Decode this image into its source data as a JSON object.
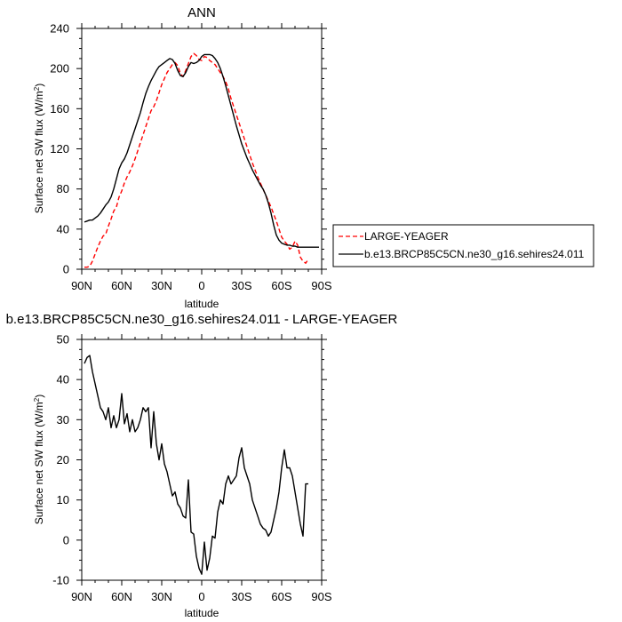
{
  "chart_data": [
    {
      "type": "line",
      "title": "ANN",
      "xlabel": "latitude",
      "ylabel": "Surface net SW flux (W/m",
      "ylabel_sup": "2",
      "ylabel_close": ")",
      "xlim": [
        90,
        -90
      ],
      "ylim": [
        0,
        240
      ],
      "xticks": [
        90,
        60,
        30,
        0,
        -30,
        -60,
        -90
      ],
      "xtick_labels": [
        "90N",
        "60N",
        "30N",
        "0",
        "30S",
        "60S",
        "90S"
      ],
      "yticks": [
        0,
        40,
        80,
        120,
        160,
        200,
        240
      ],
      "ytick_labels": [
        "0",
        "40",
        "80",
        "120",
        "160",
        "200",
        "240"
      ],
      "legend": [
        {
          "label": "LARGE-YEAGER",
          "color": "#ff0000",
          "dash": true
        },
        {
          "label": "b.e13.BRCP85C5CN.ne30_g16.sehires24.011",
          "color": "#000000",
          "dash": false
        }
      ],
      "series": [
        {
          "name": "LARGE-YEAGER",
          "color": "#ff0000",
          "dash": true,
          "x": [
            88,
            86,
            84,
            82,
            80,
            78,
            76,
            74,
            72,
            70,
            68,
            66,
            64,
            62,
            60,
            58,
            56,
            54,
            52,
            50,
            48,
            46,
            44,
            42,
            40,
            38,
            36,
            34,
            32,
            30,
            28,
            26,
            24,
            22,
            20,
            18,
            16,
            14,
            12,
            10,
            8,
            6,
            4,
            2,
            0,
            -2,
            -4,
            -6,
            -8,
            -10,
            -12,
            -14,
            -16,
            -18,
            -20,
            -22,
            -24,
            -26,
            -28,
            -30,
            -32,
            -34,
            -36,
            -38,
            -40,
            -42,
            -44,
            -46,
            -48,
            -50,
            -52,
            -54,
            -56,
            -58,
            -60,
            -62,
            -64,
            -66,
            -68,
            -70,
            -72,
            -74,
            -76,
            -78,
            -80
          ],
          "y": [
            2,
            2,
            3,
            8,
            15,
            22,
            28,
            33,
            35,
            43,
            50,
            58,
            62,
            72,
            78,
            86,
            92,
            97,
            103,
            110,
            118,
            126,
            134,
            142,
            150,
            158,
            162,
            168,
            176,
            184,
            190,
            196,
            200,
            204,
            206,
            203,
            195,
            192,
            198,
            205,
            212,
            215,
            213,
            209,
            208,
            212,
            211,
            208,
            206,
            204,
            200,
            196,
            192,
            187,
            180,
            170,
            162,
            154,
            146,
            138,
            130,
            122,
            114,
            106,
            99,
            92,
            86,
            80,
            74,
            68,
            62,
            55,
            48,
            40,
            32,
            28,
            25,
            20,
            22,
            28,
            24,
            12,
            8,
            6,
            10
          ]
        },
        {
          "name": "b.e13.BRCP85C5CN.ne30_g16.sehires24.011",
          "color": "#000000",
          "dash": false,
          "x": [
            88,
            86,
            84,
            82,
            80,
            78,
            76,
            74,
            72,
            70,
            68,
            66,
            64,
            62,
            60,
            58,
            56,
            54,
            52,
            50,
            48,
            46,
            44,
            42,
            40,
            38,
            36,
            34,
            32,
            30,
            28,
            26,
            24,
            22,
            20,
            18,
            16,
            14,
            12,
            10,
            8,
            6,
            4,
            2,
            0,
            -2,
            -4,
            -6,
            -8,
            -10,
            -12,
            -14,
            -16,
            -18,
            -20,
            -22,
            -24,
            -26,
            -28,
            -30,
            -32,
            -34,
            -36,
            -38,
            -40,
            -42,
            -44,
            -46,
            -48,
            -50,
            -52,
            -54,
            -56,
            -58,
            -60,
            -62,
            -64,
            -66,
            -68,
            -70,
            -72,
            -74,
            -76,
            -78,
            -80,
            -82,
            -84,
            -86,
            -88
          ],
          "y": [
            47,
            48,
            49,
            49,
            51,
            53,
            56,
            60,
            64,
            67,
            72,
            80,
            90,
            100,
            106,
            110,
            116,
            124,
            132,
            140,
            148,
            156,
            166,
            175,
            182,
            188,
            193,
            198,
            202,
            204,
            206,
            208,
            210,
            209,
            205,
            198,
            193,
            192,
            196,
            202,
            206,
            205,
            206,
            208,
            212,
            214,
            214,
            214,
            213,
            210,
            206,
            200,
            192,
            183,
            173,
            163,
            153,
            143,
            134,
            125,
            118,
            111,
            105,
            99,
            94,
            89,
            84,
            80,
            74,
            66,
            56,
            44,
            34,
            29,
            26,
            25,
            24,
            24,
            23,
            23,
            22,
            22,
            22,
            22,
            22,
            22,
            22,
            22,
            22
          ]
        }
      ]
    },
    {
      "type": "line",
      "title": "b.e13.BRCP85C5CN.ne30_g16.sehires24.011 - LARGE-YEAGER",
      "xlabel": "latitude",
      "ylabel": "Surface net SW flux (W/m",
      "ylabel_sup": "2",
      "ylabel_close": ")",
      "xlim": [
        90,
        -90
      ],
      "ylim": [
        -10,
        50
      ],
      "xticks": [
        90,
        60,
        30,
        0,
        -30,
        -60,
        -90
      ],
      "xtick_labels": [
        "90N",
        "60N",
        "30N",
        "0",
        "30S",
        "60S",
        "90S"
      ],
      "yticks": [
        -10,
        0,
        10,
        20,
        30,
        40,
        50
      ],
      "ytick_labels": [
        "-10",
        "0",
        "10",
        "20",
        "30",
        "40",
        "50"
      ],
      "series": [
        {
          "name": "b.e13.BRCP85C5CN.ne30_g16.sehires24.011 - LARGE-YEAGER",
          "color": "#000000",
          "dash": false,
          "x": [
            88,
            86,
            84,
            82,
            80,
            78,
            76,
            74,
            72,
            70,
            68,
            66,
            64,
            62,
            60,
            58,
            56,
            54,
            52,
            50,
            48,
            46,
            44,
            42,
            40,
            38,
            36,
            34,
            32,
            30,
            28,
            26,
            24,
            22,
            20,
            18,
            16,
            14,
            12,
            10,
            8,
            6,
            4,
            2,
            0,
            -2,
            -4,
            -6,
            -8,
            -10,
            -12,
            -14,
            -16,
            -18,
            -20,
            -22,
            -24,
            -26,
            -28,
            -30,
            -32,
            -34,
            -36,
            -38,
            -40,
            -42,
            -44,
            -46,
            -48,
            -50,
            -52,
            -54,
            -56,
            -58,
            -60,
            -62,
            -64,
            -66,
            -68,
            -70,
            -72,
            -74,
            -76,
            -78,
            -80
          ],
          "y": [
            44,
            45.5,
            46,
            42,
            39,
            36,
            33,
            32,
            30,
            33,
            28,
            31,
            28,
            30,
            36.5,
            29,
            31.5,
            27,
            30,
            27,
            28,
            30,
            33,
            32,
            33,
            23,
            32,
            24,
            20,
            24,
            19,
            17,
            14,
            11,
            12,
            9,
            8,
            6,
            5.5,
            15,
            2,
            1.5,
            -4,
            -7,
            -8.5,
            -0.5,
            -7.5,
            -4.5,
            1,
            0.5,
            7,
            10,
            9,
            14,
            16,
            14,
            15,
            16,
            20.5,
            23,
            18,
            16,
            14,
            10,
            8,
            6,
            4,
            3,
            2.5,
            1,
            2,
            5,
            8,
            12,
            18,
            22.5,
            18,
            18,
            16,
            12,
            8,
            4,
            1,
            14,
            14
          ]
        }
      ]
    }
  ]
}
